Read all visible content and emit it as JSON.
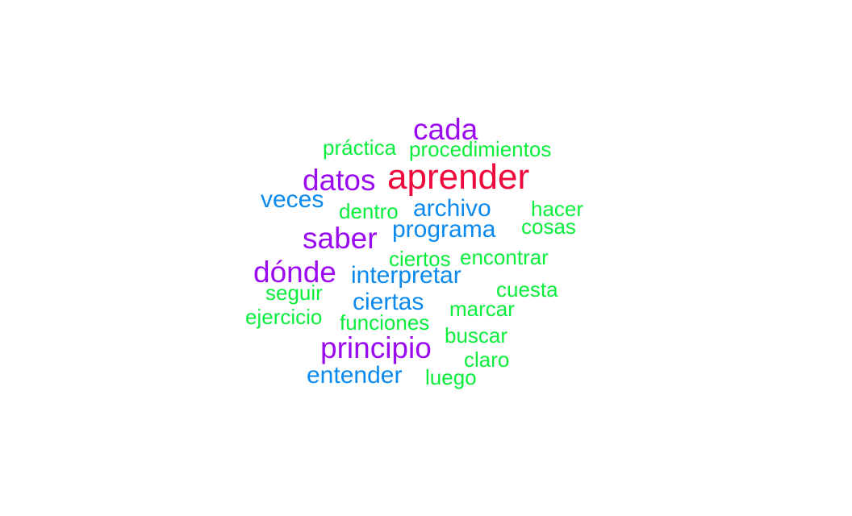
{
  "palette": {
    "red": "#EE0A3C",
    "purple": "#9A0AF0",
    "blue": "#0A8AEE",
    "green": "#0AEE3C"
  },
  "words": [
    {
      "text": "aprender",
      "color": "red"
    },
    {
      "text": "cada",
      "color": "purple"
    },
    {
      "text": "datos",
      "color": "purple"
    },
    {
      "text": "saber",
      "color": "purple"
    },
    {
      "text": "dónde",
      "color": "purple"
    },
    {
      "text": "principio",
      "color": "purple"
    },
    {
      "text": "veces",
      "color": "blue"
    },
    {
      "text": "archivo",
      "color": "blue"
    },
    {
      "text": "programa",
      "color": "blue"
    },
    {
      "text": "interpretar",
      "color": "blue"
    },
    {
      "text": "ciertas",
      "color": "blue"
    },
    {
      "text": "entender",
      "color": "blue"
    },
    {
      "text": "práctica",
      "color": "green"
    },
    {
      "text": "procedimientos",
      "color": "green"
    },
    {
      "text": "dentro",
      "color": "green"
    },
    {
      "text": "hacer",
      "color": "green"
    },
    {
      "text": "cosas",
      "color": "green"
    },
    {
      "text": "ciertos",
      "color": "green"
    },
    {
      "text": "encontrar",
      "color": "green"
    },
    {
      "text": "seguir",
      "color": "green"
    },
    {
      "text": "cuesta",
      "color": "green"
    },
    {
      "text": "marcar",
      "color": "green"
    },
    {
      "text": "ejercicio",
      "color": "green"
    },
    {
      "text": "funciones",
      "color": "green"
    },
    {
      "text": "buscar",
      "color": "green"
    },
    {
      "text": "claro",
      "color": "green"
    },
    {
      "text": "luego",
      "color": "green"
    }
  ]
}
